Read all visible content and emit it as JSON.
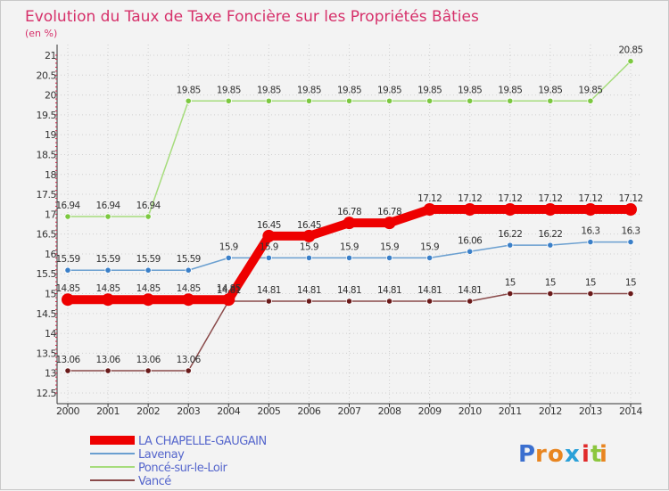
{
  "colors": {
    "title": "#d6306a",
    "axis": "#333333",
    "grid": "#d0d0d0",
    "legend_text": "#5566cc"
  },
  "logo": {
    "text": "Proxiti"
  },
  "chart_data": {
    "type": "line",
    "title": "Evolution du Taux de Taxe Foncière sur les Propriétés Bâties",
    "subtitle": "(en %)",
    "xlabel": "",
    "ylabel": "(en %)",
    "x": [
      "2000",
      "2001",
      "2002",
      "2003",
      "2004",
      "2005",
      "2006",
      "2007",
      "2008",
      "2009",
      "2010",
      "2011",
      "2012",
      "2013",
      "2014"
    ],
    "ylim": [
      12.5,
      21
    ],
    "yticks": [
      "12.5",
      "13",
      "13.5",
      "14",
      "14.5",
      "15",
      "15.5",
      "16",
      "16.5",
      "17",
      "17.5",
      "18",
      "18.5",
      "19",
      "19.5",
      "20",
      "20.5",
      "21"
    ],
    "grid": true,
    "legend_position": "bottom-left",
    "series": [
      {
        "name": "LA CHAPELLE-GAUGAIN",
        "color": "#ee0000",
        "marker": "#ee0000",
        "values": [
          14.85,
          14.85,
          14.85,
          14.85,
          14.85,
          16.45,
          16.45,
          16.78,
          16.78,
          17.12,
          17.12,
          17.12,
          17.12,
          17.12,
          17.12
        ],
        "labels": [
          "14.85",
          "14.85",
          "14.85",
          "14.85",
          "14.85",
          "16.45",
          "16.45",
          "16.78",
          "16.78",
          "17.12",
          "17.12",
          "17.12",
          "17.12",
          "17.12",
          "17.12"
        ]
      },
      {
        "name": "Lavenay",
        "color": "#6a9fd0",
        "marker": "#3a7fc8",
        "values": [
          15.59,
          15.59,
          15.59,
          15.59,
          15.9,
          15.9,
          15.9,
          15.9,
          15.9,
          15.9,
          16.06,
          16.22,
          16.22,
          16.3,
          16.3
        ],
        "labels": [
          "15.59",
          "15.59",
          "15.59",
          "15.59",
          "15.9",
          "15.9",
          "15.9",
          "15.9",
          "15.9",
          "15.9",
          "16.06",
          "16.22",
          "16.22",
          "16.3",
          "16.3"
        ]
      },
      {
        "name": "Poncé-sur-le-Loir",
        "color": "#a6dc7c",
        "marker": "#7cc840",
        "values": [
          16.94,
          16.94,
          16.94,
          19.85,
          19.85,
          19.85,
          19.85,
          19.85,
          19.85,
          19.85,
          19.85,
          19.85,
          19.85,
          19.85,
          20.85
        ],
        "labels": [
          "16.94",
          "16.94",
          "16.94",
          "19.85",
          "19.85",
          "19.85",
          "19.85",
          "19.85",
          "19.85",
          "19.85",
          "19.85",
          "19.85",
          "19.85",
          "19.85",
          "20.85"
        ]
      },
      {
        "name": "Vancé",
        "color": "#8a4a4a",
        "marker": "#6a1a1a",
        "values": [
          13.06,
          13.06,
          13.06,
          13.06,
          14.81,
          14.81,
          14.81,
          14.81,
          14.81,
          14.81,
          14.81,
          15,
          15,
          15,
          15
        ],
        "labels": [
          "13.06",
          "13.06",
          "13.06",
          "13.06",
          "14.81",
          "14.81",
          "14.81",
          "14.81",
          "14.81",
          "14.81",
          "14.81",
          "15",
          "15",
          "15",
          "15"
        ]
      }
    ]
  }
}
